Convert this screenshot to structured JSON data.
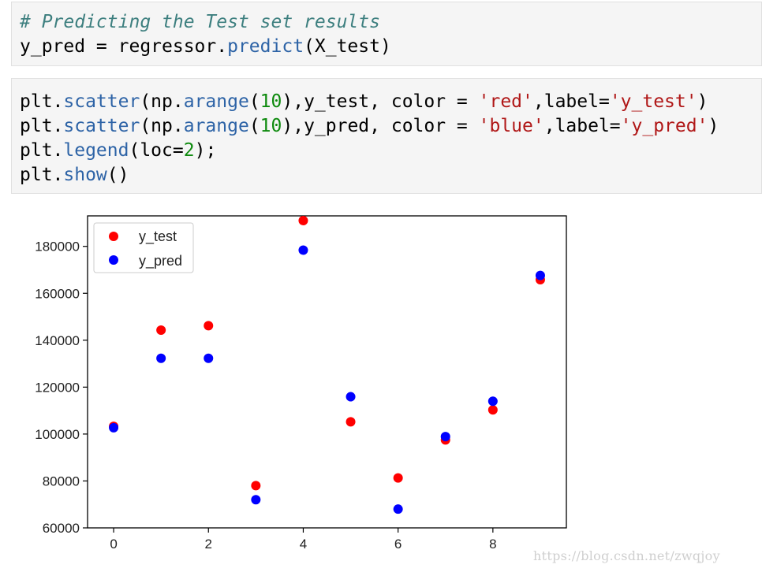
{
  "cells": {
    "cell1": {
      "comment": "# Predicting the Test set results",
      "line2": {
        "a": "y_pred = regressor.",
        "fn": "predict",
        "b": "(X_test)"
      }
    },
    "cell2": {
      "l1": {
        "a": "plt.",
        "fn": "scatter",
        "b": "(np.",
        "fn2": "arange",
        "c": "(",
        "num": "10",
        "d": "),y_test, color = ",
        "s1": "'red'",
        "e": ",label=",
        "s2": "'y_test'",
        "f": ")"
      },
      "l2": {
        "a": "plt.",
        "fn": "scatter",
        "b": "(np.",
        "fn2": "arange",
        "c": "(",
        "num": "10",
        "d": "),y_pred, color = ",
        "s1": "'blue'",
        "e": ",label=",
        "s2": "'y_pred'",
        "f": ")"
      },
      "l3": {
        "a": "plt.",
        "fn": "legend",
        "b": "(loc=",
        "num": "2",
        "c": ");"
      },
      "l4": {
        "a": "plt.",
        "fn": "show",
        "b": "()"
      }
    }
  },
  "chart_data": {
    "type": "scatter",
    "xlim": [
      -0.55,
      9.55
    ],
    "ylim": [
      60000,
      193000
    ],
    "x_ticks": [
      0,
      2,
      4,
      6,
      8
    ],
    "y_ticks": [
      60000,
      80000,
      100000,
      120000,
      140000,
      160000,
      180000
    ],
    "legend_position": "top-left",
    "series": [
      {
        "name": "y_test",
        "color": "#ff0000",
        "x": [
          0,
          1,
          2,
          3,
          4,
          5,
          6,
          7,
          8,
          9
        ],
        "y": [
          103300,
          144300,
          146200,
          78000,
          191000,
          105200,
          81300,
          97500,
          110300,
          165800
        ]
      },
      {
        "name": "y_pred",
        "color": "#0000ff",
        "x": [
          0,
          1,
          2,
          3,
          4,
          5,
          6,
          7,
          8,
          9
        ],
        "y": [
          102700,
          132300,
          132300,
          72000,
          178400,
          115900,
          68000,
          98900,
          114000,
          167600
        ]
      }
    ]
  },
  "watermark": "https://blog.csdn.net/zwqjoy"
}
